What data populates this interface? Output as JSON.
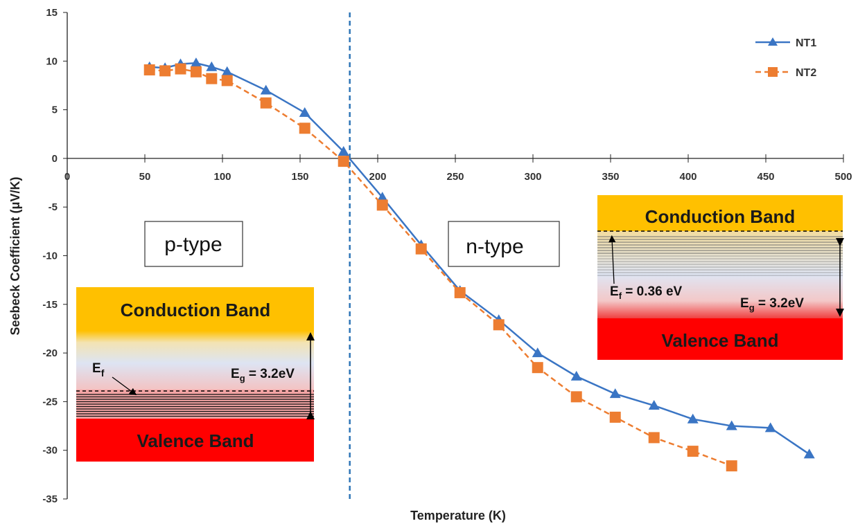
{
  "chart_data": {
    "type": "line",
    "x_label": "Temperature (K)",
    "y_label": "Seebeck Coefficient (μV/K)",
    "xlim": [
      0,
      500
    ],
    "xticks": [
      0,
      50,
      100,
      150,
      200,
      250,
      300,
      350,
      400,
      450,
      500
    ],
    "ylim": [
      -35,
      15
    ],
    "yticks": [
      -35,
      -30,
      -25,
      -20,
      -15,
      -10,
      -5,
      0,
      5,
      10,
      15
    ],
    "reference_line_x": 182,
    "reference_line_color": "#2e75b6",
    "legend": "top-right",
    "series": [
      {
        "name": "NT1",
        "color": "#3a75c4",
        "marker": "triangle",
        "dashed": false,
        "x": [
          53,
          63,
          73,
          83,
          93,
          103,
          128,
          153,
          178,
          203,
          228,
          253,
          278,
          303,
          328,
          353,
          378,
          403,
          428,
          453,
          478
        ],
        "values": [
          9.4,
          9.3,
          9.7,
          9.8,
          9.4,
          8.9,
          7.0,
          4.7,
          0.7,
          -4.0,
          -8.9,
          -13.6,
          -16.6,
          -20.0,
          -22.4,
          -24.2,
          -25.4,
          -26.8,
          -27.5,
          -27.7,
          -30.4
        ]
      },
      {
        "name": "NT2",
        "color": "#ed7d31",
        "marker": "square",
        "dashed": true,
        "x": [
          53,
          63,
          73,
          83,
          93,
          103,
          128,
          153,
          178,
          203,
          228,
          253,
          278,
          303,
          328,
          353,
          378,
          403,
          428
        ],
        "values": [
          9.1,
          9.0,
          9.2,
          8.9,
          8.2,
          8.0,
          5.7,
          3.1,
          -0.3,
          -4.8,
          -9.3,
          -13.8,
          -17.1,
          -21.5,
          -24.5,
          -26.6,
          -28.7,
          -30.1,
          -31.6
        ]
      }
    ],
    "annotations": {
      "p_type": "p-type",
      "n_type": "n-type",
      "left_band": {
        "conduction": "Conduction Band",
        "valence": "Valence Band",
        "ef": {
          "symbol": "E",
          "sub": "f"
        },
        "eg": {
          "symbol": "E",
          "sub": "g",
          "text": " = 3.2eV"
        }
      },
      "right_band": {
        "conduction": "Conduction Band",
        "valence": "Valence Band",
        "ef": {
          "symbol": "E",
          "sub": "f",
          "text": " = 0.36 eV"
        },
        "eg": {
          "symbol": "E",
          "sub": "g",
          "text": " = 3.2eV"
        }
      }
    }
  }
}
